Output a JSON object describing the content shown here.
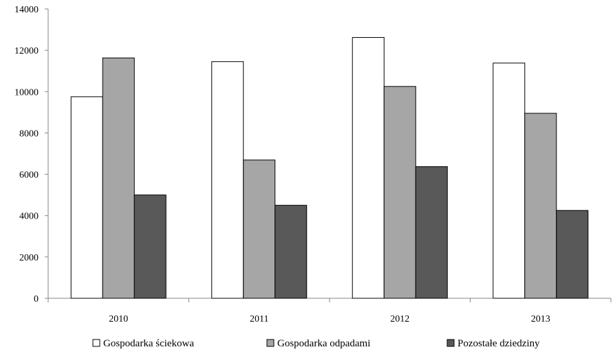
{
  "chart_data": {
    "type": "bar",
    "title": "",
    "xlabel": "",
    "ylabel": "",
    "categories": [
      "2010",
      "2011",
      "2012",
      "2013"
    ],
    "series": [
      {
        "name": "Gospodarka ściekowa",
        "color": "#ffffff",
        "values": [
          9750,
          11450,
          12620,
          11380
        ]
      },
      {
        "name": "Gospodarka odpadami",
        "color": "#a6a6a6",
        "values": [
          11630,
          6690,
          10250,
          8950
        ]
      },
      {
        "name": "Pozostałe dziedziny",
        "color": "#595959",
        "values": [
          5000,
          4500,
          6370,
          4250
        ]
      }
    ],
    "ylim": [
      0,
      14000
    ],
    "yticks": [
      0,
      2000,
      4000,
      6000,
      8000,
      10000,
      12000,
      14000
    ],
    "grid": false,
    "legend_position": "bottom"
  }
}
